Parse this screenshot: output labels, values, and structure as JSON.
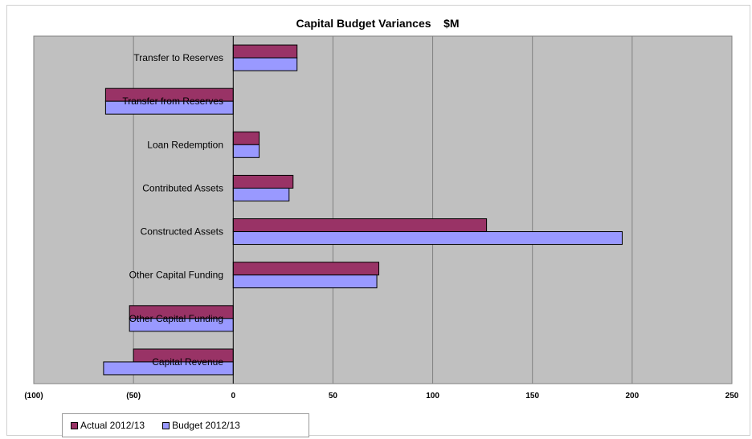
{
  "chart_data": {
    "type": "bar",
    "orientation": "horizontal",
    "title": "Capital Budget Variances    $M",
    "categories": [
      "Transfer to Reserves",
      "Transfer from Reserves",
      "Loan Redemption",
      "Contributed Assets",
      "Constructed Assets",
      "Other Capital Funding",
      "Other Capital Funding",
      "Capital Revenue"
    ],
    "series": [
      {
        "name": "Actual 2012/13",
        "color": "#993366",
        "values": [
          32,
          -64,
          13,
          30,
          127,
          73,
          -52,
          -50
        ]
      },
      {
        "name": "Budget 2012/13",
        "color": "#9999ff",
        "values": [
          32,
          -64,
          13,
          28,
          195,
          72,
          -52,
          -65
        ]
      }
    ],
    "xlim": [
      -100,
      250
    ],
    "xticks": [
      -100,
      -50,
      0,
      50,
      100,
      150,
      200,
      250
    ],
    "xtick_labels": [
      "(100)",
      "(50)",
      "0",
      "50",
      "100",
      "150",
      "200",
      "250"
    ],
    "grid": "vertical",
    "plot_background": "#c0c0c0",
    "legend_position": "bottom-left"
  }
}
